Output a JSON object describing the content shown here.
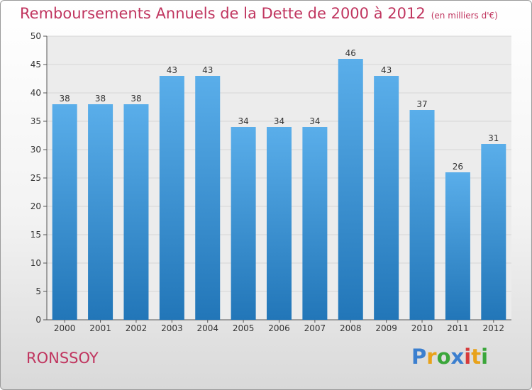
{
  "title": "Remboursements Annuels de la Dette de 2000 à 2012",
  "subtitle": "(en milliers d'€)",
  "town": "RONSSOY",
  "logo_text": "Proxiti",
  "colors": {
    "title": "#c0355f",
    "bar_top": "#5aaeea",
    "bar_bottom": "#2276b8",
    "grid": "#d6d6d6"
  },
  "chart_data": {
    "type": "bar",
    "title": "Remboursements Annuels de la Dette de 2000 à 2012",
    "subtitle": "(en milliers d'€)",
    "categories": [
      "2000",
      "2001",
      "2002",
      "2003",
      "2004",
      "2005",
      "2006",
      "2007",
      "2008",
      "2009",
      "2010",
      "2011",
      "2012"
    ],
    "values": [
      38,
      38,
      38,
      43,
      43,
      34,
      34,
      34,
      46,
      43,
      37,
      26,
      31
    ],
    "ylim": [
      0,
      50
    ],
    "yticks": [
      0,
      5,
      10,
      15,
      20,
      25,
      30,
      35,
      40,
      45,
      50
    ],
    "grid": true
  }
}
